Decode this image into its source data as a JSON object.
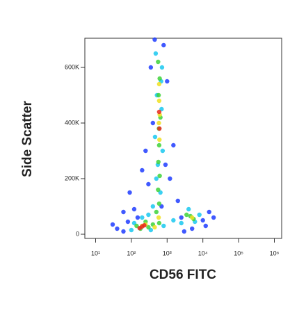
{
  "chart_data": {
    "type": "scatter",
    "x_label": "CD56 FITC",
    "y_label": "Side Scatter",
    "xscale": "log",
    "xlim": [
      5,
      1600000
    ],
    "xticks": [
      {
        "value": 10,
        "label": "10¹"
      },
      {
        "value": 100,
        "label": "10²"
      },
      {
        "value": 1000,
        "label": "10³"
      },
      {
        "value": 10000,
        "label": "10⁴"
      },
      {
        "value": 100000,
        "label": "10⁵"
      },
      {
        "value": 1000000,
        "label": "10⁶"
      }
    ],
    "ylim": [
      -15000,
      705000
    ],
    "yticks": [
      0,
      {
        "value": 200000,
        "label": "200K"
      },
      {
        "value": 400000,
        "label": "400K"
      },
      {
        "value": 600000,
        "label": "600K"
      }
    ],
    "series": [
      {
        "color": "#1f3cff",
        "x": [
          40,
          60,
          80,
          30,
          120,
          90,
          200,
          300,
          900,
          1500,
          2000,
          5000,
          10000,
          15000,
          12000,
          400,
          1000,
          350,
          800,
          150,
          2500,
          700,
          250,
          1200,
          60,
          20000,
          3000,
          450
        ],
        "y": [
          20000,
          10000,
          45000,
          35000,
          90000,
          150000,
          230000,
          180000,
          250000,
          320000,
          120000,
          20000,
          50000,
          80000,
          30000,
          400000,
          550000,
          600000,
          680000,
          60000,
          60000,
          100000,
          300000,
          200000,
          80000,
          60000,
          10000,
          700000
        ]
      },
      {
        "color": "#19c8f0",
        "x": [
          480,
          720,
          520,
          700,
          460,
          750,
          500,
          650,
          400,
          300,
          200,
          120,
          100,
          350,
          800,
          1500,
          4000,
          6000,
          8000,
          2500,
          550,
          680
        ],
        "y": [
          650000,
          600000,
          500000,
          450000,
          350000,
          300000,
          200000,
          150000,
          100000,
          70000,
          60000,
          40000,
          15000,
          15000,
          30000,
          50000,
          90000,
          45000,
          70000,
          40000,
          250000,
          550000
        ]
      },
      {
        "color": "#3ed23a",
        "x": [
          560,
          620,
          580,
          650,
          590,
          600,
          570,
          620,
          560,
          600,
          500,
          250,
          180,
          400,
          600,
          4500,
          5500,
          3500,
          140,
          300
        ],
        "y": [
          620000,
          560000,
          500000,
          420000,
          380000,
          320000,
          260000,
          210000,
          160000,
          110000,
          80000,
          45000,
          20000,
          35000,
          40000,
          65000,
          55000,
          70000,
          30000,
          25000
        ]
      },
      {
        "color": "#f0e020",
        "x": [
          600,
          620,
          590,
          610,
          600,
          200,
          250,
          450,
          5000,
          580
        ],
        "y": [
          480000,
          430000,
          400000,
          340000,
          540000,
          30000,
          35000,
          25000,
          60000,
          60000
        ]
      },
      {
        "color": "#e8281e",
        "x": [
          600,
          610,
          200,
          230,
          170
        ],
        "y": [
          440000,
          380000,
          28000,
          32000,
          22000
        ]
      }
    ]
  }
}
